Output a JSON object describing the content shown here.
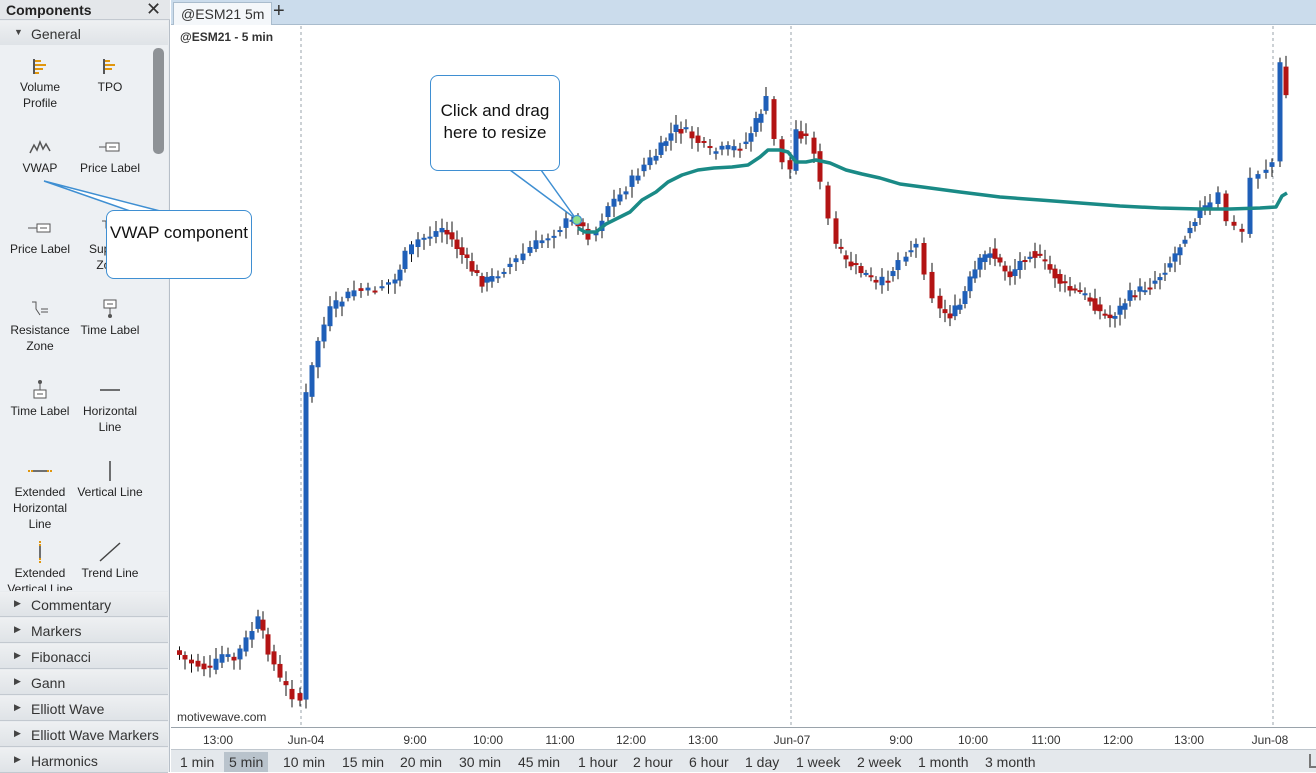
{
  "panel": {
    "title": "Components",
    "close_glyph": "✕",
    "sections": [
      {
        "label": "General",
        "expanded": true
      },
      {
        "label": "Commentary"
      },
      {
        "label": "Markers"
      },
      {
        "label": "Fibonacci"
      },
      {
        "label": "Gann"
      },
      {
        "label": "Elliott Wave"
      },
      {
        "label": "Elliott Wave Markers"
      },
      {
        "label": "Harmonics"
      }
    ],
    "tools": [
      {
        "label": "Volume Profile",
        "icon": "volume-profile-icon"
      },
      {
        "label": "TPO",
        "icon": "tpo-icon"
      },
      {
        "label": "VWAP",
        "icon": "vwap-icon"
      },
      {
        "label": "Price Label",
        "icon": "price-label-icon"
      },
      {
        "label": "Price Label",
        "icon": "price-label-left-icon"
      },
      {
        "label": "Support Zone",
        "icon": "support-zone-icon"
      },
      {
        "label": "Resistance Zone",
        "icon": "resistance-zone-icon"
      },
      {
        "label": "Time Label",
        "icon": "time-label-icon"
      },
      {
        "label": "Time Label",
        "icon": "time-label-up-icon"
      },
      {
        "label": "Horizontal Line",
        "icon": "horizontal-line-icon"
      },
      {
        "label": "Extended Horizontal Line",
        "icon": "extended-horizontal-line-icon"
      },
      {
        "label": "Vertical Line",
        "icon": "vertical-line-icon"
      },
      {
        "label": "Extended Vertical Line",
        "icon": "extended-vertical-line-icon"
      },
      {
        "label": "Trend Line",
        "icon": "trend-line-icon"
      }
    ]
  },
  "tabs": {
    "active_label": "@ESM21 5m",
    "add_glyph": "+"
  },
  "chart": {
    "symbol": "@ESM21",
    "interval": " - 5 min",
    "watermark": "motivewave.com",
    "x_ticks": [
      "13:00",
      "Jun-04",
      "9:00",
      "10:00",
      "11:00",
      "12:00",
      "13:00",
      "Jun-07",
      "9:00",
      "10:00",
      "11:00",
      "12:00",
      "13:00",
      "Jun-08"
    ],
    "colors": {
      "up": "#1f5fb8",
      "down": "#b31414",
      "vwap": "#1a8a86",
      "grid": "#9aa3ab"
    }
  },
  "callouts": {
    "resize": "Click and drag here to resize",
    "vwap": "VWAP component"
  },
  "bottom_bar": {
    "periods": [
      "1 min",
      "5 min",
      "10 min",
      "15 min",
      "20 min",
      "30 min",
      "45 min",
      "1 hour",
      "2 hour",
      "6 hour",
      "1 day",
      "1 week",
      "2 week",
      "1 month",
      "3 month"
    ],
    "active": "5 min"
  }
}
